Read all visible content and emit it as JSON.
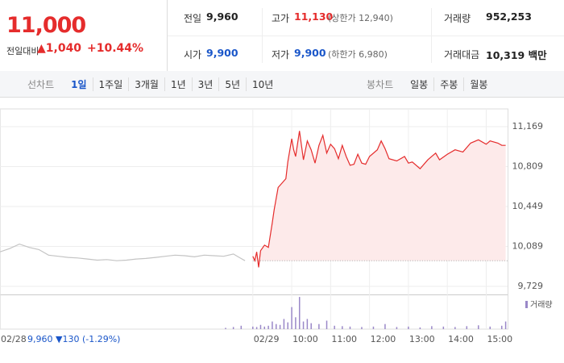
{
  "header": {
    "price": "11,000",
    "change_label": "전일대비",
    "change": "▲1,040",
    "rate": "+10.44%",
    "cells": [
      {
        "label": "전일",
        "value": "9,960"
      },
      {
        "label": "고가",
        "value": "11,130",
        "note": "(상한가 12,940)"
      },
      {
        "label": "거래량",
        "value": "952,253"
      },
      {
        "label": "시가",
        "value": "9,900"
      },
      {
        "label": "저가",
        "value": "9,900",
        "note": "(하한가 6,980)"
      },
      {
        "label": "거래대금",
        "value": "10,319 백만"
      }
    ]
  },
  "tabs": {
    "line_label": "선차트",
    "line_items": [
      "1일",
      "1주일",
      "3개월",
      "1년",
      "3년",
      "5년",
      "10년"
    ],
    "selected": 0,
    "candle_label": "봉차트",
    "candle_items": [
      "일봉",
      "주봉",
      "월봉"
    ]
  },
  "footer": {
    "close": "9,960",
    "change": "▼130",
    "rate": "(-1.29%)"
  },
  "chart_data": [
    {
      "type": "line",
      "baseline": 9960,
      "area_color": "#fdeaea",
      "xlim": [
        0,
        13.05
      ],
      "ylim": [
        9656,
        11256
      ],
      "xticks": [
        {
          "value": 0,
          "label": "02/28"
        },
        {
          "value": 6.5,
          "label": "02/29"
        },
        {
          "value": 7.5,
          "label": "10:00"
        },
        {
          "value": 8.5,
          "label": "11:00"
        },
        {
          "value": 9.5,
          "label": "12:00"
        },
        {
          "value": 10.5,
          "label": "13:00"
        },
        {
          "value": 11.5,
          "label": "14:00"
        },
        {
          "value": 12.5,
          "label": "15:00"
        }
      ],
      "yticks": [
        {
          "value": 11169,
          "label": "11,169"
        },
        {
          "value": 10809,
          "label": "10,809"
        },
        {
          "value": 10449,
          "label": "10,449"
        },
        {
          "value": 10089,
          "label": "10,089"
        },
        {
          "value": 9729,
          "label": "9,729"
        }
      ],
      "grid": true,
      "series": [
        {
          "color": "#c4c4c4",
          "area": false,
          "x": [
            0,
            0.25,
            0.5,
            0.75,
            1,
            1.25,
            1.5,
            1.75,
            2,
            2.25,
            2.5,
            2.75,
            3,
            3.25,
            3.5,
            3.75,
            4,
            4.25,
            4.5,
            4.75,
            5,
            5.25,
            5.5,
            5.75,
            6,
            6.15,
            6.3
          ],
          "values": [
            10040,
            10070,
            10110,
            10080,
            10060,
            10010,
            10000,
            9990,
            9985,
            9975,
            9965,
            9970,
            9960,
            9965,
            9975,
            9980,
            9990,
            10000,
            10010,
            10005,
            9995,
            10010,
            10005,
            10000,
            10020,
            9990,
            9960
          ]
        },
        {
          "color": "#e52c2c",
          "area": true,
          "x": [
            6.5,
            6.55,
            6.6,
            6.65,
            6.7,
            6.8,
            6.9,
            7.0,
            7.05,
            7.15,
            7.25,
            7.35,
            7.4,
            7.5,
            7.55,
            7.6,
            7.7,
            7.8,
            7.9,
            8.0,
            8.1,
            8.2,
            8.3,
            8.4,
            8.5,
            8.6,
            8.7,
            8.8,
            8.9,
            9.0,
            9.1,
            9.2,
            9.3,
            9.4,
            9.5,
            9.7,
            9.8,
            9.9,
            10.0,
            10.2,
            10.4,
            10.5,
            10.6,
            10.8,
            11.0,
            11.2,
            11.3,
            11.5,
            11.7,
            11.9,
            12.1,
            12.3,
            12.5,
            12.6,
            12.8,
            12.9,
            13.0
          ],
          "values": [
            10000,
            9960,
            10040,
            9900,
            10050,
            10100,
            10080,
            10300,
            10420,
            10620,
            10660,
            10700,
            10850,
            11060,
            10960,
            10900,
            11130,
            10870,
            11040,
            10960,
            10840,
            11000,
            11090,
            10930,
            11010,
            10970,
            10880,
            11000,
            10900,
            10820,
            10830,
            10920,
            10840,
            10830,
            10900,
            10960,
            11040,
            10970,
            10880,
            10860,
            10900,
            10840,
            10850,
            10790,
            10870,
            10930,
            10870,
            10920,
            10960,
            10940,
            11020,
            11050,
            11010,
            11040,
            11020,
            11000,
            11000
          ]
        }
      ]
    },
    {
      "type": "bar",
      "xlim": [
        0,
        13.05
      ],
      "ylim": [
        0,
        40000
      ],
      "series": [
        {
          "name": "거래량",
          "color": "#9a88c8",
          "x": [
            5.8,
            6.0,
            6.2,
            6.5,
            6.6,
            6.7,
            6.8,
            6.9,
            7.0,
            7.1,
            7.2,
            7.3,
            7.4,
            7.5,
            7.6,
            7.7,
            7.8,
            7.9,
            8.0,
            8.2,
            8.4,
            8.6,
            8.8,
            9.0,
            9.3,
            9.6,
            9.9,
            10.2,
            10.5,
            10.8,
            11.1,
            11.4,
            11.7,
            12.0,
            12.3,
            12.6,
            12.9,
            13.0
          ],
          "values": [
            1500,
            2500,
            4000,
            3000,
            2500,
            5000,
            3000,
            4000,
            9000,
            6000,
            5000,
            12000,
            8000,
            26000,
            14000,
            38000,
            9000,
            12000,
            7000,
            6000,
            10000,
            4000,
            3500,
            3000,
            2500,
            3000,
            6000,
            2500,
            3000,
            2000,
            3500,
            3000,
            2500,
            3500,
            4500,
            3000,
            4000,
            9000
          ]
        }
      ]
    }
  ]
}
